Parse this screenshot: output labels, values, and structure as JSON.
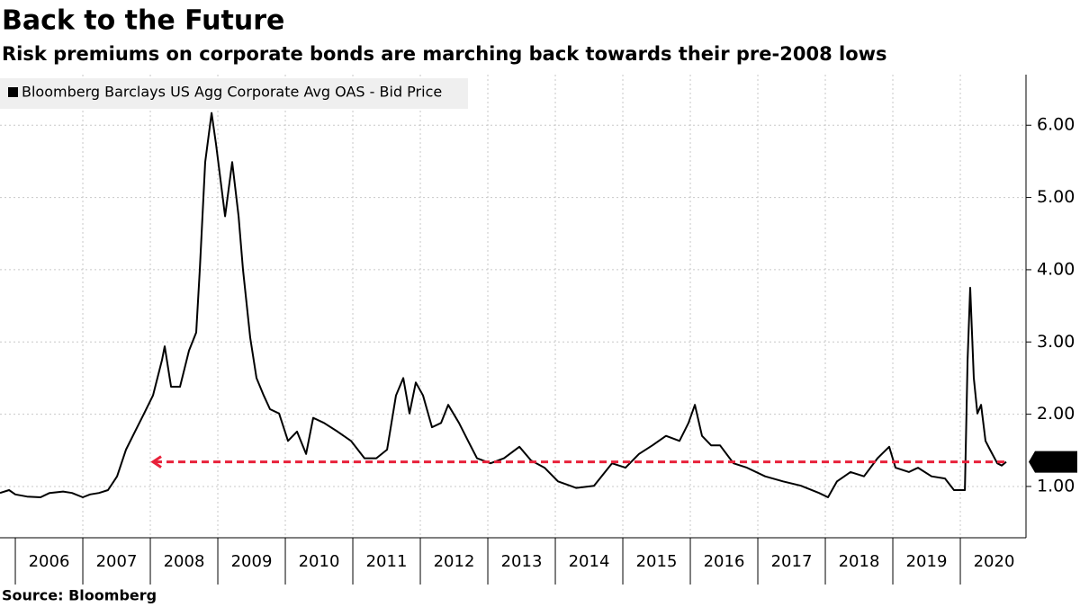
{
  "chart_data": {
    "type": "line",
    "title": "Back to the Future",
    "subtitle": "Risk premiums on corporate bonds are marching back towards their pre-2008 lows",
    "source": "Source: Bloomberg",
    "legend": "top-left",
    "grid": true,
    "series": [
      {
        "name": "Bloomberg Barclays US Agg Corporate Avg OAS - Bid Price",
        "color": "#000000",
        "x": [
          2005.773,
          2005.907,
          2006,
          2006.173,
          2006.373,
          2006.507,
          2006.707,
          2006.84,
          2007,
          2007.107,
          2007.24,
          2007.373,
          2007.507,
          2007.64,
          2007.773,
          2007.907,
          2008.04,
          2008.173,
          2008.213,
          2008.307,
          2008.44,
          2008.573,
          2008.68,
          2008.733,
          2008.813,
          2008.907,
          2008.973,
          2009.107,
          2009.213,
          2009.307,
          2009.373,
          2009.48,
          2009.573,
          2009.68,
          2009.773,
          2009.907,
          2010.04,
          2010.173,
          2010.307,
          2010.413,
          2010.573,
          2010.773,
          2010.973,
          2011.173,
          2011.347,
          2011.507,
          2011.64,
          2011.747,
          2011.84,
          2011.933,
          2012.04,
          2012.173,
          2012.307,
          2012.413,
          2012.573,
          2012.707,
          2012.84,
          2013.04,
          2013.24,
          2013.467,
          2013.64,
          2013.84,
          2014.04,
          2014.307,
          2014.573,
          2014.84,
          2015.04,
          2015.24,
          2015.44,
          2015.64,
          2015.84,
          2015.973,
          2016.067,
          2016.173,
          2016.307,
          2016.44,
          2016.64,
          2016.84,
          2017.107,
          2017.373,
          2017.64,
          2017.907,
          2018.04,
          2018.173,
          2018.373,
          2018.573,
          2018.773,
          2018.947,
          2019.04,
          2019.24,
          2019.373,
          2019.573,
          2019.773,
          2019.907,
          2020.067,
          2020.107,
          2020.147,
          2020.2,
          2020.253,
          2020.307,
          2020.373,
          2020.44,
          2020.547,
          2020.613,
          2020.68
        ],
        "values": [
          0.91,
          0.95,
          0.89,
          0.86,
          0.85,
          0.91,
          0.93,
          0.91,
          0.85,
          0.89,
          0.91,
          0.95,
          1.14,
          1.51,
          1.76,
          2.01,
          2.26,
          2.75,
          2.94,
          2.38,
          2.38,
          2.88,
          3.13,
          4.0,
          5.49,
          6.17,
          5.74,
          4.74,
          5.49,
          4.74,
          4.0,
          3.06,
          2.5,
          2.26,
          2.07,
          2.01,
          1.63,
          1.76,
          1.45,
          1.95,
          1.88,
          1.76,
          1.63,
          1.39,
          1.39,
          1.51,
          2.26,
          2.5,
          2.01,
          2.44,
          2.26,
          1.82,
          1.88,
          2.13,
          1.88,
          1.63,
          1.39,
          1.32,
          1.39,
          1.55,
          1.36,
          1.26,
          1.07,
          0.98,
          1.01,
          1.32,
          1.26,
          1.45,
          1.57,
          1.7,
          1.63,
          1.88,
          2.13,
          1.7,
          1.57,
          1.57,
          1.32,
          1.26,
          1.14,
          1.07,
          1.01,
          0.91,
          0.85,
          1.07,
          1.2,
          1.14,
          1.39,
          1.55,
          1.26,
          1.2,
          1.26,
          1.14,
          1.11,
          0.95,
          0.95,
          2.75,
          3.75,
          2.5,
          2.01,
          2.13,
          1.63,
          1.51,
          1.32,
          1.29,
          1.34
        ]
      }
    ],
    "reference_line": {
      "value": 1.34,
      "x": [
        2008.04,
        2020.68
      ],
      "color": "#e8213a"
    },
    "xlim": [
      2005.773,
      2020.973
    ],
    "xticks": [
      2006,
      2007,
      2008,
      2009,
      2010,
      2011,
      2012,
      2013,
      2014,
      2015,
      2016,
      2017,
      2018,
      2019,
      2020
    ],
    "ylim": [
      0.29,
      6.7
    ],
    "yticks": [
      {
        "value": 1,
        "label": "1.00"
      },
      {
        "value": 2,
        "label": "2.00"
      },
      {
        "value": 3,
        "label": "3.00"
      },
      {
        "value": 4,
        "label": "4.00"
      },
      {
        "value": 5,
        "label": "5.00"
      },
      {
        "value": 6,
        "label": "6.00"
      }
    ]
  }
}
